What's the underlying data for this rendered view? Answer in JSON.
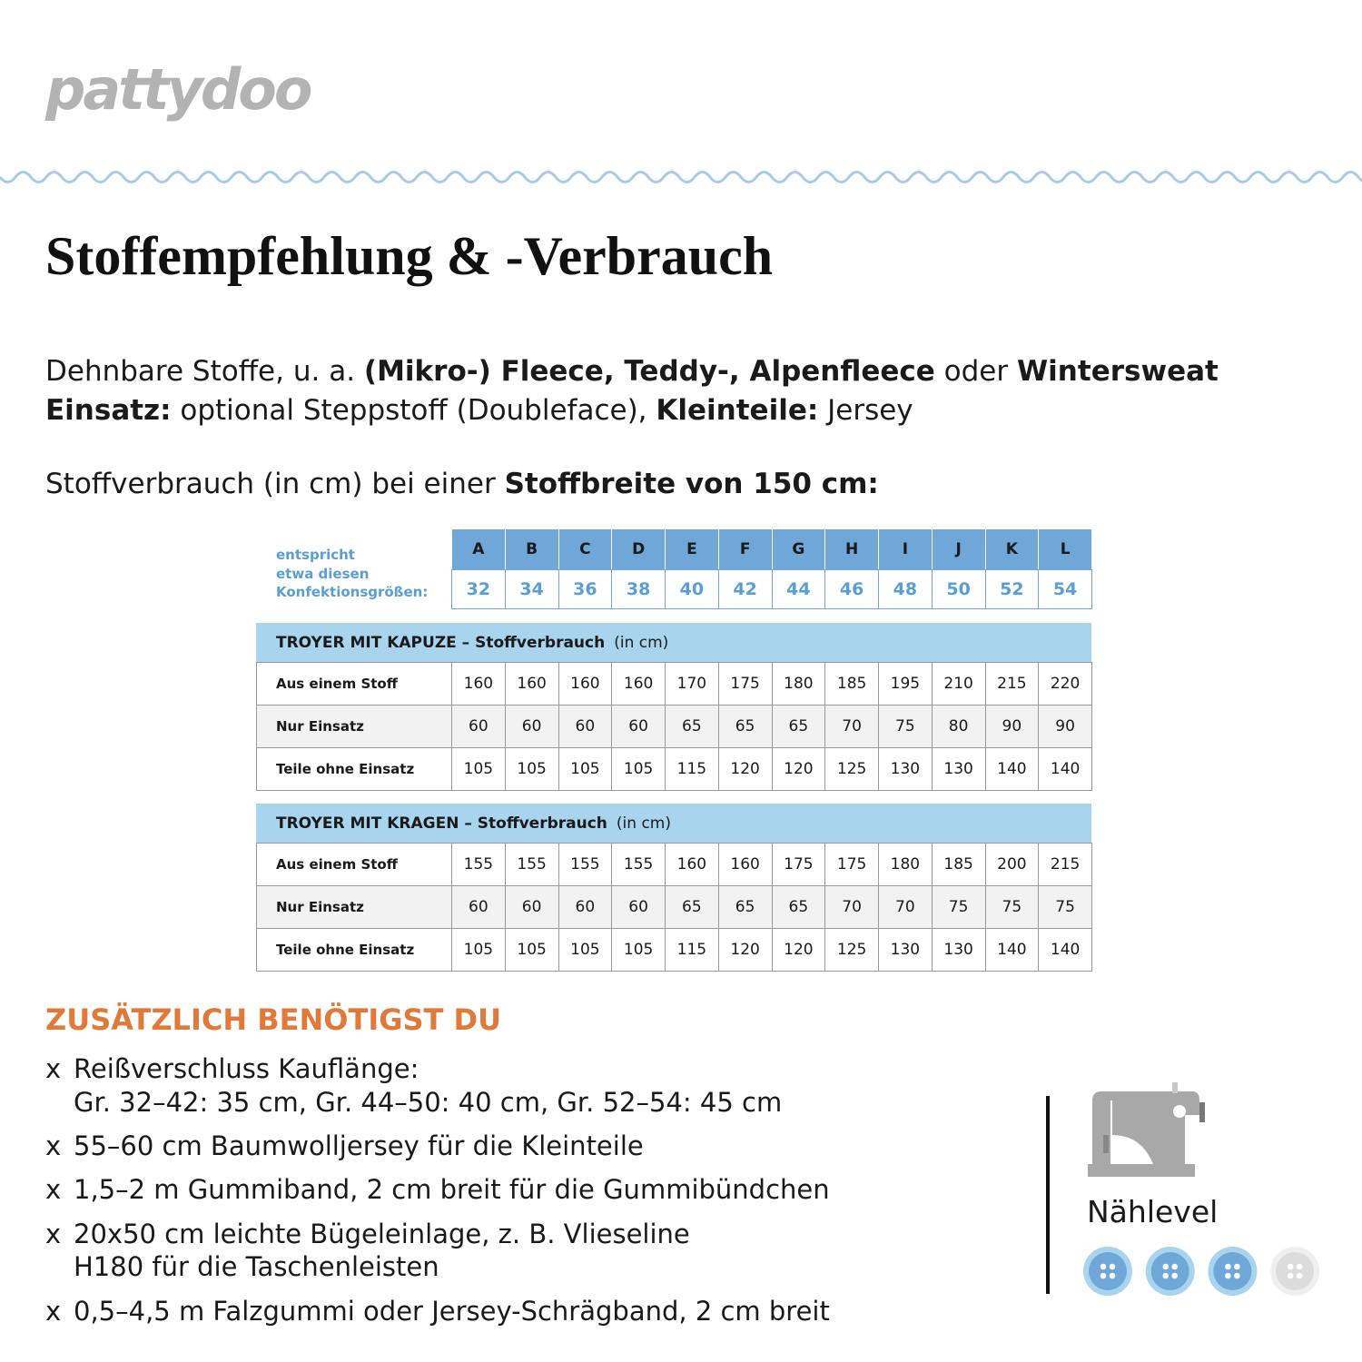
{
  "logo": "pattydoo",
  "title": "Stoffempfehlung & -Verbrauch",
  "intro": [
    [
      {
        "text": "Dehnbare Stoffe, u. a. ",
        "bold": false
      },
      {
        "text": "(Mikro-) Fleece, Teddy-, Alpenfleece",
        "bold": true
      },
      {
        "text": " oder ",
        "bold": false
      },
      {
        "text": "Wintersweat",
        "bold": true
      }
    ],
    [
      {
        "text": "Einsatz:",
        "bold": true
      },
      {
        "text": " optional Steppstoff (Doubleface), ",
        "bold": false
      },
      {
        "text": "Kleinteile:",
        "bold": true
      },
      {
        "text": " Jersey",
        "bold": false
      }
    ]
  ],
  "fabric_width": [
    {
      "text": "Stoffverbrauch (in cm) bei einer ",
      "bold": false
    },
    {
      "text": "Stoffbreite von 150 cm:",
      "bold": true
    }
  ],
  "table": {
    "size_label": [
      "entspricht",
      "etwa diesen",
      "Konfektionsgrößen:"
    ],
    "letters": [
      "A",
      "B",
      "C",
      "D",
      "E",
      "F",
      "G",
      "H",
      "I",
      "J",
      "K",
      "L"
    ],
    "sizes": [
      32,
      34,
      36,
      38,
      40,
      42,
      44,
      46,
      48,
      50,
      52,
      54
    ],
    "sections": [
      {
        "title": "TROYER MIT KAPUZE – Stoffverbrauch",
        "unit": "(in cm)",
        "rows": [
          {
            "label": "Aus einem Stoff",
            "values": [
              160,
              160,
              160,
              160,
              170,
              175,
              180,
              185,
              195,
              210,
              215,
              220
            ]
          },
          {
            "label": "Nur Einsatz",
            "values": [
              60,
              60,
              60,
              60,
              65,
              65,
              65,
              70,
              75,
              80,
              90,
              90
            ]
          },
          {
            "label": "Teile ohne Einsatz",
            "values": [
              105,
              105,
              105,
              105,
              115,
              120,
              120,
              125,
              130,
              130,
              140,
              140
            ]
          }
        ]
      },
      {
        "title": "TROYER MIT KRAGEN – Stoffverbrauch",
        "unit": "(in cm)",
        "rows": [
          {
            "label": "Aus einem Stoff",
            "values": [
              155,
              155,
              155,
              155,
              160,
              160,
              175,
              175,
              180,
              185,
              200,
              215
            ]
          },
          {
            "label": "Nur Einsatz",
            "values": [
              60,
              60,
              60,
              60,
              65,
              65,
              65,
              70,
              70,
              75,
              75,
              75
            ]
          },
          {
            "label": "Teile ohne Einsatz",
            "values": [
              105,
              105,
              105,
              105,
              115,
              120,
              120,
              125,
              130,
              130,
              140,
              140
            ]
          }
        ]
      }
    ]
  },
  "extras": {
    "heading": "ZUSÄTZLICH BENÖTIGST DU",
    "bullet": "x",
    "items": [
      [
        "Reißverschluss Kauflänge:",
        "Gr. 32–42: 35 cm, Gr. 44–50: 40 cm, Gr. 52–54: 45 cm"
      ],
      [
        "55–60 cm Baumwolljersey für die Kleinteile"
      ],
      [
        "1,5–2 m Gummiband, 2 cm breit für die Gummibündchen"
      ],
      [
        "20x50 cm leichte Bügeleinlage, z. B. Vlieseline",
        "H180 für die Taschenleisten"
      ],
      [
        "0,5–4,5 m Falzgummi oder Jersey-Schrägband, 2 cm breit"
      ]
    ]
  },
  "skill": {
    "label": "Nählevel",
    "level": 3,
    "level_max": 4
  }
}
